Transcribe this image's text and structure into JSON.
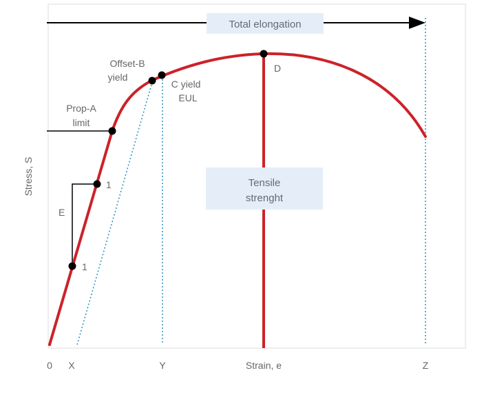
{
  "axes": {
    "y_label": "Stress, S",
    "x_label": "Strain, e",
    "x_ticks": [
      "0",
      "X",
      "Y",
      "Z"
    ]
  },
  "labels": {
    "total_elongation": "Total elongation",
    "offset_yield_line1": "Offset-B",
    "offset_yield_line2": "yield",
    "c_yield_line1": "C yield",
    "c_yield_line2": "EUL",
    "prop_limit_line1": "Prop-A",
    "prop_limit_line2": "limit",
    "point_d": "D",
    "slope_e": "E",
    "slope_run_upper": "1",
    "slope_run_lower": "1",
    "tensile_line1": "Tensile",
    "tensile_line2": "strenght"
  },
  "colors": {
    "curve": "#cc2229",
    "dotted": "#2a8fc0",
    "box_fill": "#e5eef8",
    "axis_frame": "#dddddd",
    "text": "#666666",
    "points": "#000000"
  }
}
